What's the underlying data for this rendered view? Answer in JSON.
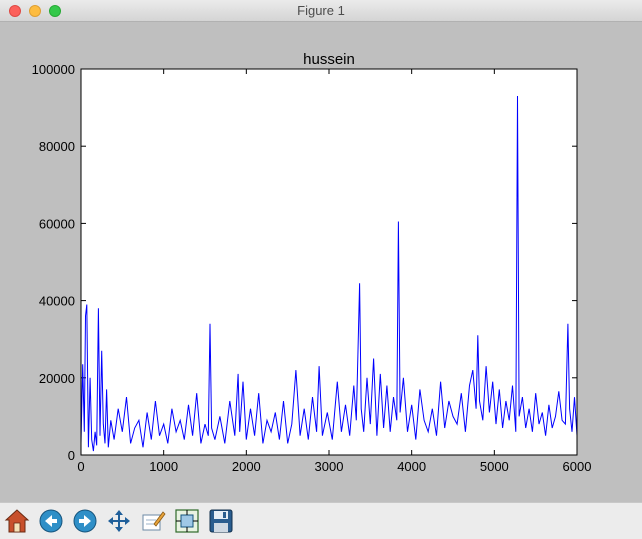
{
  "window": {
    "title": "Figure 1"
  },
  "toolbar": {
    "buttons": [
      {
        "name": "home-icon"
      },
      {
        "name": "back-icon"
      },
      {
        "name": "forward-icon"
      },
      {
        "name": "pan-icon"
      },
      {
        "name": "zoom-icon"
      },
      {
        "name": "subplots-icon"
      },
      {
        "name": "save-icon"
      }
    ]
  },
  "chart_data": {
    "type": "line",
    "title": "hussein",
    "xlabel": "",
    "ylabel": "",
    "xlim": [
      0,
      6000
    ],
    "ylim": [
      0,
      100000
    ],
    "xticks": [
      "0",
      "1000",
      "2000",
      "3000",
      "4000",
      "5000",
      "6000"
    ],
    "yticks": [
      "0",
      "20000",
      "40000",
      "60000",
      "80000",
      "100000"
    ],
    "grid": false,
    "legend": "none",
    "series": [
      {
        "color": "#0000ff",
        "x": [
          0,
          20,
          40,
          55,
          70,
          90,
          110,
          130,
          150,
          170,
          190,
          210,
          230,
          250,
          270,
          290,
          310,
          330,
          360,
          400,
          450,
          500,
          550,
          600,
          650,
          700,
          750,
          800,
          850,
          900,
          950,
          1000,
          1050,
          1100,
          1150,
          1200,
          1250,
          1300,
          1350,
          1400,
          1450,
          1500,
          1540,
          1560,
          1580,
          1620,
          1680,
          1740,
          1800,
          1860,
          1900,
          1920,
          1960,
          2000,
          2050,
          2100,
          2150,
          2200,
          2250,
          2300,
          2350,
          2400,
          2450,
          2500,
          2550,
          2600,
          2650,
          2700,
          2750,
          2800,
          2850,
          2880,
          2920,
          2980,
          3040,
          3100,
          3150,
          3200,
          3250,
          3300,
          3330,
          3350,
          3370,
          3390,
          3420,
          3460,
          3500,
          3540,
          3580,
          3620,
          3660,
          3700,
          3740,
          3780,
          3820,
          3840,
          3860,
          3900,
          3950,
          4000,
          4050,
          4100,
          4150,
          4200,
          4250,
          4300,
          4350,
          4400,
          4450,
          4500,
          4550,
          4600,
          4650,
          4700,
          4740,
          4780,
          4800,
          4820,
          4860,
          4900,
          4940,
          4980,
          5020,
          5060,
          5100,
          5140,
          5180,
          5220,
          5260,
          5280,
          5300,
          5340,
          5380,
          5420,
          5460,
          5500,
          5540,
          5580,
          5620,
          5660,
          5700,
          5740,
          5780,
          5820,
          5860,
          5890,
          5910,
          5940,
          5970,
          6000
        ],
        "y": [
          3000,
          23500,
          6000,
          36000,
          39000,
          2000,
          20000,
          4000,
          1000,
          6000,
          2500,
          38000,
          5000,
          27000,
          8000,
          3000,
          17000,
          2000,
          9000,
          4000,
          12000,
          6000,
          15000,
          3000,
          7000,
          9000,
          2000,
          11000,
          4000,
          14000,
          5000,
          8000,
          3000,
          12000,
          6000,
          9000,
          4000,
          13000,
          5000,
          16000,
          3000,
          8000,
          5000,
          34000,
          7000,
          4000,
          10000,
          3000,
          14000,
          5000,
          21000,
          6000,
          19000,
          4000,
          12000,
          5000,
          16000,
          3000,
          9000,
          6000,
          11000,
          4000,
          14000,
          3000,
          8000,
          22000,
          5000,
          12000,
          4000,
          15000,
          6000,
          23000,
          5000,
          11000,
          4000,
          19000,
          6000,
          13000,
          5000,
          18000,
          9000,
          26000,
          44500,
          12000,
          6000,
          20000,
          8000,
          25000,
          5000,
          21000,
          7000,
          18000,
          6000,
          15000,
          9000,
          60500,
          11000,
          20000,
          6000,
          13000,
          4000,
          17000,
          9000,
          6000,
          12000,
          5000,
          19000,
          7000,
          14000,
          10000,
          8000,
          16000,
          6000,
          18000,
          22000,
          12000,
          31000,
          14000,
          9000,
          23000,
          11000,
          19000,
          8000,
          17000,
          7000,
          14000,
          9000,
          18000,
          6000,
          93000,
          10000,
          15000,
          7000,
          12000,
          6000,
          16000,
          8000,
          11000,
          5000,
          13000,
          7000,
          10000,
          16500,
          9000,
          8000,
          34000,
          12000,
          6000,
          15000,
          5000
        ]
      }
    ]
  }
}
